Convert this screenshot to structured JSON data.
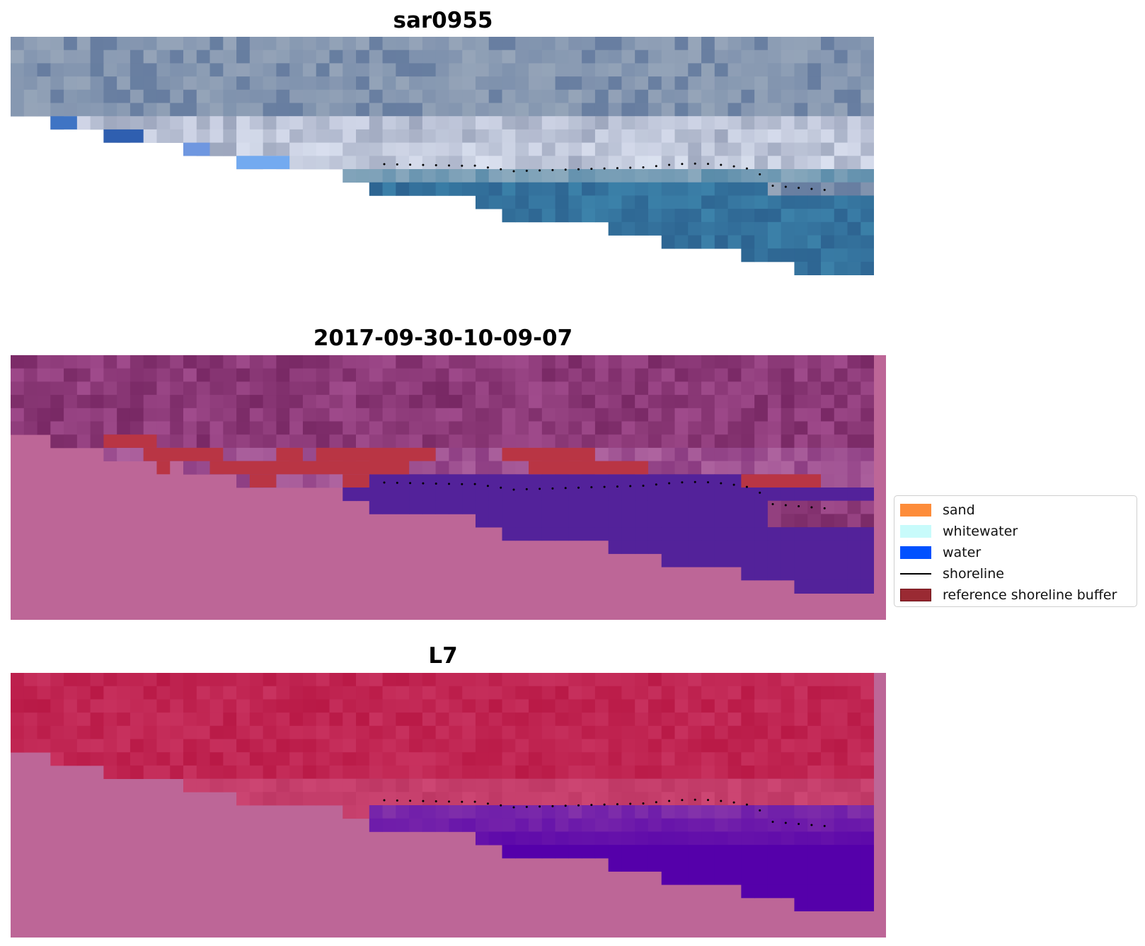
{
  "figure": {
    "panels": [
      {
        "id": "rgb",
        "title": "sar0955"
      },
      {
        "id": "classified",
        "title": "2017-09-30-10-09-07"
      },
      {
        "id": "index",
        "title": "L7"
      }
    ],
    "legend": {
      "items": [
        {
          "label": "sand",
          "kind": "patch",
          "color": "#fd8c3a"
        },
        {
          "label": "whitewater",
          "kind": "patch",
          "color": "#c8fbfb"
        },
        {
          "label": "water",
          "kind": "patch",
          "color": "#0051ff"
        },
        {
          "label": "shoreline",
          "kind": "line",
          "color": "#000000"
        },
        {
          "label": "reference shoreline buffer",
          "kind": "patch",
          "color": "#9a2a33"
        }
      ]
    },
    "colors": {
      "nodata_pink": "#bd6697",
      "water_purple": "#53229a",
      "buffer_red": "#b93544"
    }
  }
}
